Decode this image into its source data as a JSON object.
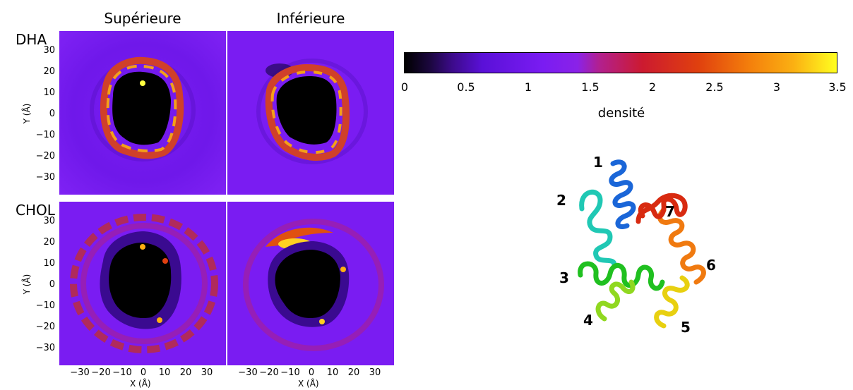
{
  "columns": [
    "Supérieure",
    "Inférieure"
  ],
  "rows": [
    "DHA",
    "CHOL"
  ],
  "x_ticks": [
    "−30",
    "−20",
    "−10",
    "0",
    "10",
    "20",
    "30"
  ],
  "y_ticks": [
    "30",
    "20",
    "10",
    "0",
    "−10",
    "−20",
    "−30"
  ],
  "xlabel": "X (Å)",
  "ylabel": "Y (Å)",
  "colorbar": {
    "label": "densité",
    "ticks": [
      "0",
      "0.5",
      "1",
      "1.5",
      "2",
      "2.5",
      "3",
      "3.5"
    ]
  },
  "helix_labels": [
    "1",
    "2",
    "3",
    "4",
    "5",
    "6",
    "7"
  ],
  "chart_data": [
    {
      "type": "heatmap",
      "row": "DHA",
      "column": "Supérieure",
      "xlim": [
        -40,
        40
      ],
      "ylim": [
        -40,
        40
      ],
      "colorbar_range": [
        0,
        3.5
      ]
    },
    {
      "type": "heatmap",
      "row": "DHA",
      "column": "Inférieure",
      "xlim": [
        -40,
        40
      ],
      "ylim": [
        -40,
        40
      ],
      "colorbar_range": [
        0,
        3.5
      ]
    },
    {
      "type": "heatmap",
      "row": "CHOL",
      "column": "Supérieure",
      "xlim": [
        -40,
        40
      ],
      "ylim": [
        -40,
        40
      ],
      "colorbar_range": [
        0,
        3.5
      ]
    },
    {
      "type": "heatmap",
      "row": "CHOL",
      "column": "Inférieure",
      "xlim": [
        -40,
        40
      ],
      "ylim": [
        -40,
        40
      ],
      "colorbar_range": [
        0,
        3.5
      ]
    }
  ]
}
